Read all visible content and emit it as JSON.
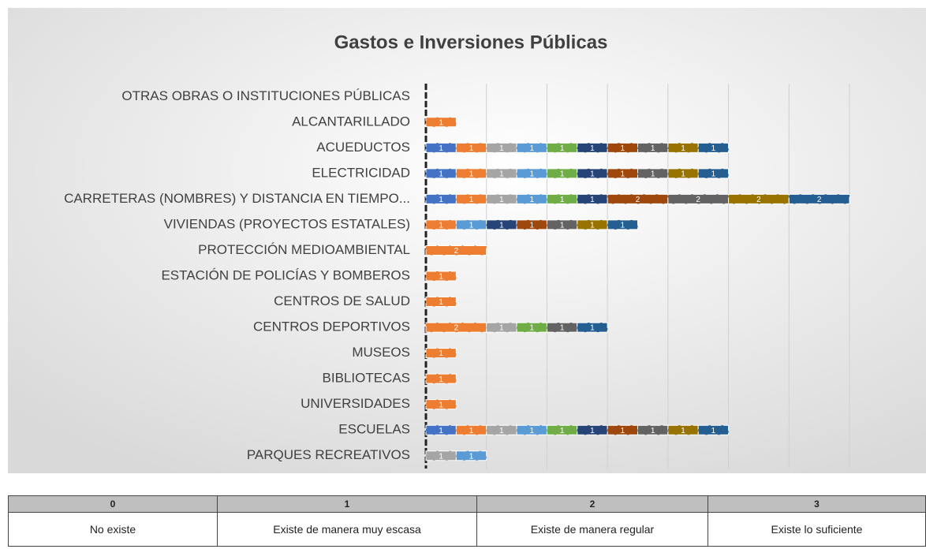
{
  "chart_data": {
    "type": "stacked_barh",
    "title": "Gastos e Inversiones Públicas",
    "categories": [
      "OTRAS OBRAS O INSTITUCIONES PÚBLICAS",
      "ALCANTARILLADO",
      "ACUEDUCTOS",
      "ELECTRICIDAD",
      "CARRETERAS (NOMBRES) Y DISTANCIA EN TIEMPO...",
      "VIVIENDAS (PROYECTOS ESTATALES)",
      "PROTECCIÓN MEDIOAMBIENTAL",
      "ESTACIÓN DE POLICÍAS Y BOMBEROS",
      "CENTROS DE SALUD",
      "CENTROS DEPORTIVOS",
      "MUSEOS",
      "BIBLIOTECAS",
      "UNIVERSIDADES",
      "ESCUELAS",
      "PARQUES RECREATIVOS"
    ],
    "series": [
      {
        "color": "#4472c4",
        "values": [
          null,
          null,
          1,
          1,
          1,
          null,
          null,
          null,
          null,
          null,
          null,
          null,
          null,
          1,
          null
        ]
      },
      {
        "color": "#ed7d31",
        "values": [
          null,
          1,
          1,
          1,
          1,
          1,
          2,
          1,
          1,
          2,
          1,
          1,
          1,
          1,
          null
        ]
      },
      {
        "color": "#a5a5a5",
        "values": [
          null,
          null,
          1,
          1,
          1,
          null,
          null,
          null,
          null,
          1,
          null,
          null,
          null,
          1,
          1
        ]
      },
      {
        "color": "#5b9bd5",
        "values": [
          null,
          null,
          1,
          1,
          1,
          1,
          null,
          null,
          null,
          null,
          null,
          null,
          null,
          1,
          1
        ]
      },
      {
        "color": "#70ad47",
        "values": [
          null,
          null,
          1,
          1,
          1,
          null,
          null,
          null,
          null,
          1,
          null,
          null,
          null,
          1,
          null
        ]
      },
      {
        "color": "#264478",
        "values": [
          null,
          null,
          1,
          1,
          1,
          1,
          null,
          null,
          null,
          null,
          null,
          null,
          null,
          1,
          null
        ]
      },
      {
        "color": "#9e480e",
        "values": [
          null,
          null,
          1,
          1,
          2,
          1,
          null,
          null,
          null,
          null,
          null,
          null,
          null,
          1,
          null
        ]
      },
      {
        "color": "#636363",
        "values": [
          null,
          null,
          1,
          1,
          2,
          1,
          null,
          null,
          null,
          1,
          null,
          null,
          null,
          1,
          null
        ]
      },
      {
        "color": "#997300",
        "values": [
          null,
          null,
          1,
          1,
          2,
          1,
          null,
          null,
          null,
          null,
          null,
          null,
          null,
          1,
          null
        ]
      },
      {
        "color": "#255e91",
        "values": [
          null,
          null,
          1,
          1,
          2,
          1,
          null,
          null,
          null,
          1,
          null,
          null,
          null,
          1,
          null
        ]
      }
    ],
    "xlim": [
      0,
      14
    ],
    "xticks": [
      0,
      2,
      4,
      6,
      8,
      10,
      12,
      14
    ],
    "grid": true
  },
  "legend_table": {
    "headers": [
      "0",
      "1",
      "2",
      "3"
    ],
    "descriptions": [
      "No existe",
      "Existe de manera muy escasa",
      "Existe de manera regular",
      "Existe lo suficiente"
    ]
  }
}
